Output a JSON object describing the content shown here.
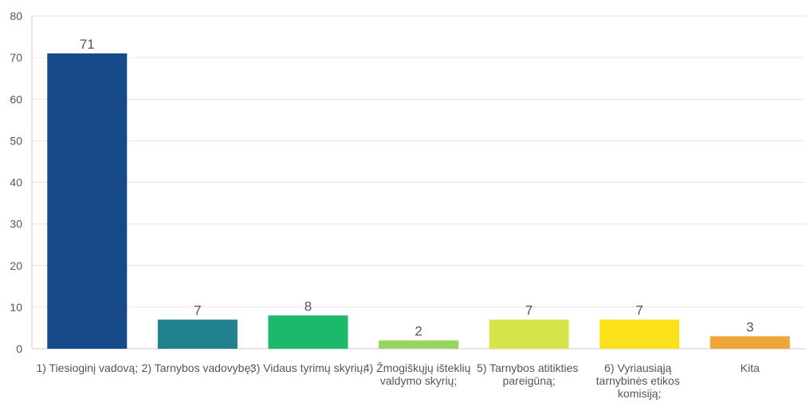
{
  "chart_data": {
    "type": "bar",
    "categories": [
      "1) Tiesioginį vadovą;",
      "2) Tarnybos vadovybę;",
      "3) Vidaus tyrimų skyrių;",
      "4) Žmogiškųjų išteklių valdymo skyrių;",
      "5) Tarnybos atitikties pareigūną;",
      "6) Vyriausiąją tarnybinės etikos komisiją;",
      "Kita"
    ],
    "values": [
      71,
      7,
      8,
      2,
      7,
      7,
      3
    ],
    "colors": [
      "#174a8b",
      "#21818f",
      "#1bb96a",
      "#98d460",
      "#d7e54c",
      "#fde11b",
      "#eea63a"
    ],
    "ylim": [
      0,
      80
    ],
    "yticks": [
      0,
      10,
      20,
      30,
      40,
      50,
      60,
      70,
      80
    ],
    "grid": true
  }
}
